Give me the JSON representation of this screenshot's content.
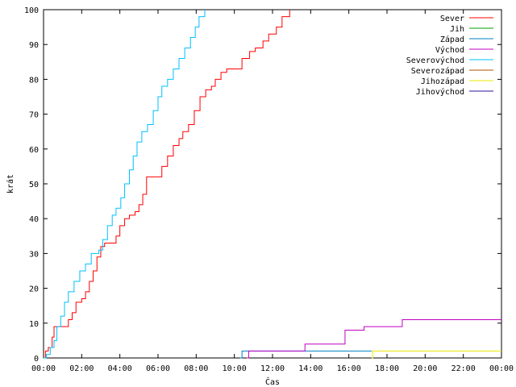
{
  "chart_data": {
    "type": "line",
    "title": "",
    "xlabel": "Čas",
    "ylabel": "krát",
    "xlim": [
      0,
      24
    ],
    "ylim": [
      0,
      100
    ],
    "x_unit": "hours",
    "x_ticks": [
      {
        "value": 0,
        "label": "00:00"
      },
      {
        "value": 2,
        "label": "02:00"
      },
      {
        "value": 4,
        "label": "04:00"
      },
      {
        "value": 6,
        "label": "06:00"
      },
      {
        "value": 8,
        "label": "08:00"
      },
      {
        "value": 10,
        "label": "10:00"
      },
      {
        "value": 12,
        "label": "12:00"
      },
      {
        "value": 14,
        "label": "14:00"
      },
      {
        "value": 16,
        "label": "16:00"
      },
      {
        "value": 18,
        "label": "18:00"
      },
      {
        "value": 20,
        "label": "20:00"
      },
      {
        "value": 22,
        "label": "22:00"
      },
      {
        "value": 24,
        "label": "00:00"
      }
    ],
    "y_ticks": [
      {
        "value": 0,
        "label": "0"
      },
      {
        "value": 10,
        "label": "10"
      },
      {
        "value": 20,
        "label": "20"
      },
      {
        "value": 30,
        "label": "30"
      },
      {
        "value": 40,
        "label": "40"
      },
      {
        "value": 50,
        "label": "50"
      },
      {
        "value": 60,
        "label": "60"
      },
      {
        "value": 70,
        "label": "70"
      },
      {
        "value": 80,
        "label": "80"
      },
      {
        "value": 90,
        "label": "90"
      },
      {
        "value": 100,
        "label": "100"
      }
    ],
    "grid": false,
    "legend_position": "top-right",
    "series": [
      {
        "name": "Sever",
        "color": "#ff0000",
        "step": true,
        "points": [
          [
            0,
            0
          ],
          [
            0.1,
            2
          ],
          [
            0.25,
            3
          ],
          [
            0.45,
            6
          ],
          [
            0.55,
            9
          ],
          [
            1.15,
            9
          ],
          [
            1.3,
            11
          ],
          [
            1.5,
            13
          ],
          [
            1.7,
            16
          ],
          [
            2.0,
            17
          ],
          [
            2.2,
            19
          ],
          [
            2.4,
            22
          ],
          [
            2.6,
            25
          ],
          [
            2.8,
            29
          ],
          [
            3.0,
            32
          ],
          [
            3.2,
            33
          ],
          [
            3.6,
            33
          ],
          [
            3.8,
            35
          ],
          [
            4.0,
            38
          ],
          [
            4.25,
            40
          ],
          [
            4.5,
            41
          ],
          [
            4.8,
            42
          ],
          [
            5.0,
            44
          ],
          [
            5.2,
            47
          ],
          [
            5.4,
            52
          ],
          [
            6.0,
            52
          ],
          [
            6.2,
            55
          ],
          [
            6.5,
            58
          ],
          [
            6.8,
            61
          ],
          [
            7.1,
            63
          ],
          [
            7.3,
            65
          ],
          [
            7.6,
            67
          ],
          [
            7.9,
            71
          ],
          [
            8.2,
            75
          ],
          [
            8.5,
            77
          ],
          [
            8.8,
            78
          ],
          [
            9.0,
            80
          ],
          [
            9.3,
            82
          ],
          [
            9.6,
            83
          ],
          [
            10.1,
            83
          ],
          [
            10.4,
            86
          ],
          [
            10.8,
            88
          ],
          [
            11.1,
            89
          ],
          [
            11.5,
            91
          ],
          [
            11.8,
            93
          ],
          [
            12.2,
            95
          ],
          [
            12.5,
            98
          ],
          [
            12.9,
            100
          ]
        ]
      },
      {
        "name": "Jih",
        "color": "#00a000",
        "step": true,
        "points": []
      },
      {
        "name": "Západ",
        "color": "#0080c0",
        "step": true,
        "points": [
          [
            10.3,
            0
          ],
          [
            10.4,
            2
          ],
          [
            17.2,
            2
          ]
        ]
      },
      {
        "name": "Východ",
        "color": "#c000c0",
        "step": true,
        "points": [
          [
            10.65,
            0
          ],
          [
            10.75,
            2
          ],
          [
            13.6,
            2
          ],
          [
            13.7,
            4
          ],
          [
            15.6,
            4
          ],
          [
            15.8,
            8
          ],
          [
            16.6,
            8
          ],
          [
            16.8,
            9
          ],
          [
            18.7,
            9
          ],
          [
            18.8,
            11
          ],
          [
            24,
            11
          ]
        ]
      },
      {
        "name": "Severovýchod",
        "color": "#00c0ff",
        "step": true,
        "points": [
          [
            0,
            0
          ],
          [
            0.15,
            1
          ],
          [
            0.35,
            3
          ],
          [
            0.55,
            5
          ],
          [
            0.7,
            9
          ],
          [
            0.9,
            12
          ],
          [
            1.1,
            16
          ],
          [
            1.3,
            19
          ],
          [
            1.6,
            22
          ],
          [
            1.9,
            25
          ],
          [
            2.2,
            27
          ],
          [
            2.5,
            30
          ],
          [
            2.9,
            31
          ],
          [
            3.1,
            34
          ],
          [
            3.35,
            38
          ],
          [
            3.6,
            41
          ],
          [
            3.8,
            43
          ],
          [
            4.05,
            46
          ],
          [
            4.25,
            50
          ],
          [
            4.5,
            54
          ],
          [
            4.7,
            58
          ],
          [
            4.9,
            62
          ],
          [
            5.15,
            65
          ],
          [
            5.45,
            67
          ],
          [
            5.75,
            71
          ],
          [
            6.0,
            75
          ],
          [
            6.2,
            78
          ],
          [
            6.5,
            80
          ],
          [
            6.8,
            83
          ],
          [
            7.1,
            86
          ],
          [
            7.4,
            89
          ],
          [
            7.7,
            92
          ],
          [
            7.95,
            95
          ],
          [
            8.15,
            98
          ],
          [
            8.45,
            100
          ]
        ]
      },
      {
        "name": "Severozápad",
        "color": "#b05000",
        "step": true,
        "points": []
      },
      {
        "name": "Jihozápad",
        "color": "#e8e800",
        "step": true,
        "points": [
          [
            17.2,
            0
          ],
          [
            17.25,
            2
          ],
          [
            24,
            2
          ]
        ]
      },
      {
        "name": "Jihovýchod",
        "color": "#3010a0",
        "step": true,
        "points": []
      }
    ]
  }
}
